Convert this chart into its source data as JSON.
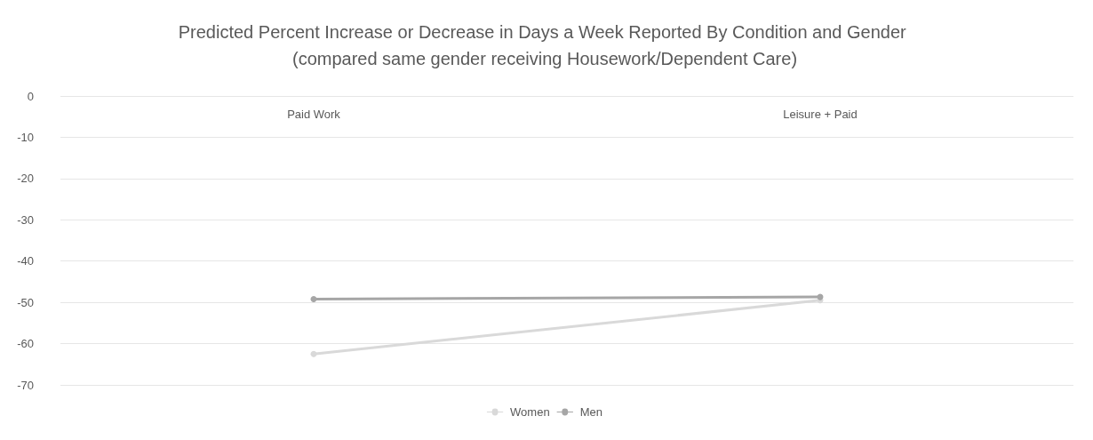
{
  "chart_data": {
    "type": "line",
    "title": "Predicted Percent Increase or Decrease in Days a Week Reported By Condition and Gender (compared same gender receiving Housework/Dependent Care)",
    "categories": [
      "Paid Work",
      "Leisure + Paid"
    ],
    "series": [
      {
        "name": "Women",
        "color": "#d9d9d9",
        "values": [
          -62.5,
          -49.5
        ]
      },
      {
        "name": "Men",
        "color": "#a6a6a6",
        "values": [
          -49.2,
          -48.7
        ]
      }
    ],
    "ylim": [
      -70,
      0
    ],
    "yticks": [
      0,
      -10,
      -20,
      -30,
      -40,
      -50,
      -60,
      -70
    ],
    "grid": "y",
    "legend": "bottom",
    "marker": "circle",
    "line_style": "solid"
  }
}
